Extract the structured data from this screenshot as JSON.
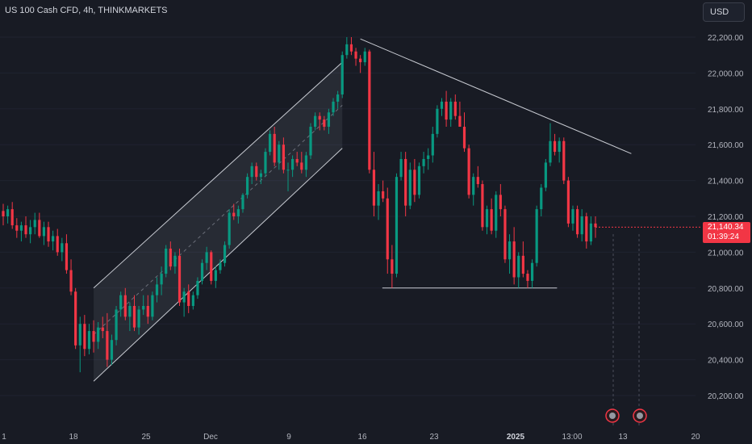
{
  "header": {
    "title": "US 100 Cash CFD, 4h, THINKMARKETS",
    "currency": "USD"
  },
  "last_price": {
    "value": "21,140.34",
    "countdown": "01:39:24"
  },
  "colors": {
    "background": "#181b24",
    "up": "#089981",
    "down": "#f23645",
    "line": "#c9ccd3"
  },
  "chart_data": {
    "type": "candlestick",
    "title": "US 100 Cash CFD, 4h, THINKMARKETS",
    "timeframe": "4h",
    "ylim": [
      20100,
      22280
    ],
    "y_ticks": [
      22200,
      22000,
      21800,
      21600,
      21400,
      21200,
      21000,
      20800,
      20600,
      20400,
      20200
    ],
    "y_tick_labels": [
      "22,200.00",
      "22,000.00",
      "21,800.00",
      "21,600.00",
      "21,400.00",
      "21,200.00",
      "21,000.00",
      "20,800.00",
      "20,600.00",
      "20,400.00",
      "20,200.00"
    ],
    "x_tick_labels": [
      "1",
      "18",
      "25",
      "Dec",
      "9",
      "16",
      "23",
      "2025",
      "13:00",
      "13",
      "20"
    ],
    "x_tick_bold": [
      false,
      false,
      false,
      false,
      false,
      false,
      false,
      true,
      false,
      false,
      false
    ],
    "candles": [
      [
        21230,
        21270,
        21150,
        21200
      ],
      [
        21200,
        21260,
        21160,
        21240
      ],
      [
        21240,
        21280,
        21130,
        21150
      ],
      [
        21150,
        21190,
        21080,
        21120
      ],
      [
        21120,
        21170,
        21060,
        21150
      ],
      [
        21150,
        21200,
        21080,
        21100
      ],
      [
        21100,
        21180,
        21050,
        21140
      ],
      [
        21140,
        21220,
        21100,
        21180
      ],
      [
        21180,
        21220,
        21080,
        21090
      ],
      [
        21090,
        21170,
        21040,
        21140
      ],
      [
        21140,
        21170,
        21030,
        21060
      ],
      [
        21060,
        21120,
        21010,
        21090
      ],
      [
        21090,
        21130,
        20980,
        21000
      ],
      [
        21000,
        21080,
        20950,
        21050
      ],
      [
        21050,
        21100,
        20880,
        20900
      ],
      [
        20900,
        20960,
        20760,
        20780
      ],
      [
        20780,
        20800,
        20460,
        20480
      ],
      [
        20480,
        20640,
        20330,
        20600
      ],
      [
        20600,
        20650,
        20420,
        20460
      ],
      [
        20460,
        20600,
        20430,
        20560
      ],
      [
        20560,
        20620,
        20440,
        20500
      ],
      [
        20500,
        20610,
        20460,
        20580
      ],
      [
        20580,
        20640,
        20520,
        20560
      ],
      [
        20560,
        20660,
        20360,
        20400
      ],
      [
        20400,
        20540,
        20370,
        20510
      ],
      [
        20510,
        20700,
        20480,
        20680
      ],
      [
        20680,
        20780,
        20640,
        20760
      ],
      [
        20760,
        20800,
        20620,
        20640
      ],
      [
        20640,
        20720,
        20560,
        20700
      ],
      [
        20700,
        20760,
        20560,
        20580
      ],
      [
        20580,
        20700,
        20540,
        20680
      ],
      [
        20680,
        20760,
        20650,
        20700
      ],
      [
        20700,
        20760,
        20600,
        20640
      ],
      [
        20640,
        20780,
        20620,
        20760
      ],
      [
        20760,
        20860,
        20720,
        20820
      ],
      [
        20820,
        20920,
        20760,
        20880
      ],
      [
        20880,
        21040,
        20860,
        21020
      ],
      [
        21020,
        21060,
        20900,
        20920
      ],
      [
        20920,
        21000,
        20880,
        20980
      ],
      [
        20980,
        21020,
        20700,
        20720
      ],
      [
        20720,
        20800,
        20640,
        20780
      ],
      [
        20780,
        20820,
        20660,
        20700
      ],
      [
        20700,
        20780,
        20680,
        20760
      ],
      [
        20760,
        20860,
        20740,
        20840
      ],
      [
        20840,
        20960,
        20820,
        20940
      ],
      [
        20940,
        21030,
        20900,
        21000
      ],
      [
        21000,
        21010,
        20820,
        20840
      ],
      [
        20840,
        20920,
        20800,
        20900
      ],
      [
        20900,
        20960,
        20880,
        20940
      ],
      [
        20940,
        21060,
        20920,
        21040
      ],
      [
        21040,
        21240,
        21020,
        21220
      ],
      [
        21220,
        21270,
        21180,
        21200
      ],
      [
        21200,
        21260,
        21160,
        21240
      ],
      [
        21240,
        21330,
        21220,
        21320
      ],
      [
        21320,
        21440,
        21300,
        21420
      ],
      [
        21420,
        21500,
        21380,
        21480
      ],
      [
        21480,
        21500,
        21400,
        21420
      ],
      [
        21420,
        21460,
        21380,
        21440
      ],
      [
        21440,
        21580,
        21420,
        21560
      ],
      [
        21560,
        21680,
        21540,
        21660
      ],
      [
        21660,
        21700,
        21480,
        21500
      ],
      [
        21500,
        21620,
        21460,
        21600
      ],
      [
        21600,
        21640,
        21440,
        21460
      ],
      [
        21460,
        21500,
        21340,
        21460
      ],
      [
        21460,
        21540,
        21420,
        21520
      ],
      [
        21520,
        21560,
        21480,
        21500
      ],
      [
        21500,
        21560,
        21440,
        21460
      ],
      [
        21460,
        21560,
        21420,
        21540
      ],
      [
        21540,
        21720,
        21520,
        21700
      ],
      [
        21700,
        21780,
        21680,
        21760
      ],
      [
        21760,
        21780,
        21680,
        21740
      ],
      [
        21740,
        21760,
        21680,
        21700
      ],
      [
        21700,
        21800,
        21660,
        21780
      ],
      [
        21780,
        21860,
        21760,
        21840
      ],
      [
        21840,
        21900,
        21800,
        21880
      ],
      [
        21880,
        22120,
        21860,
        22100
      ],
      [
        22100,
        22200,
        22080,
        22160
      ],
      [
        22160,
        22200,
        22100,
        22120
      ],
      [
        22120,
        22140,
        22040,
        22080
      ],
      [
        22080,
        22100,
        22000,
        22060
      ],
      [
        22060,
        22140,
        22040,
        22120
      ],
      [
        22120,
        22130,
        21440,
        21460
      ],
      [
        21460,
        21560,
        21200,
        21260
      ],
      [
        21260,
        21380,
        21180,
        21340
      ],
      [
        21340,
        21400,
        21280,
        21300
      ],
      [
        21300,
        21360,
        20880,
        20960
      ],
      [
        20960,
        21040,
        20800,
        20880
      ],
      [
        20880,
        21440,
        20860,
        21420
      ],
      [
        21420,
        21560,
        21400,
        21520
      ],
      [
        21520,
        21560,
        21200,
        21260
      ],
      [
        21260,
        21500,
        21240,
        21460
      ],
      [
        21460,
        21520,
        21280,
        21320
      ],
      [
        21320,
        21500,
        21300,
        21480
      ],
      [
        21480,
        21560,
        21440,
        21520
      ],
      [
        21520,
        21580,
        21460,
        21540
      ],
      [
        21540,
        21700,
        21500,
        21660
      ],
      [
        21660,
        21820,
        21640,
        21800
      ],
      [
        21800,
        21860,
        21760,
        21840
      ],
      [
        21840,
        21900,
        21700,
        21740
      ],
      [
        21740,
        21860,
        21700,
        21840
      ],
      [
        21840,
        21880,
        21740,
        21760
      ],
      [
        21760,
        21840,
        21700,
        21700
      ],
      [
        21700,
        21780,
        21560,
        21580
      ],
      [
        21580,
        21600,
        21300,
        21320
      ],
      [
        21320,
        21440,
        21260,
        21420
      ],
      [
        21420,
        21480,
        21360,
        21380
      ],
      [
        21380,
        21400,
        21120,
        21140
      ],
      [
        21140,
        21260,
        21100,
        21240
      ],
      [
        21240,
        21300,
        21100,
        21120
      ],
      [
        21120,
        21340,
        21080,
        21320
      ],
      [
        21320,
        21380,
        21200,
        21240
      ],
      [
        21240,
        21260,
        20940,
        20960
      ],
      [
        20960,
        21100,
        20880,
        21060
      ],
      [
        21060,
        21140,
        20820,
        20860
      ],
      [
        20860,
        21000,
        20800,
        20980
      ],
      [
        20980,
        21060,
        20860,
        20880
      ],
      [
        20880,
        20900,
        20800,
        20840
      ],
      [
        20840,
        20960,
        20800,
        20940
      ],
      [
        20940,
        21260,
        20920,
        21240
      ],
      [
        21240,
        21380,
        21200,
        21360
      ],
      [
        21360,
        21520,
        21340,
        21500
      ],
      [
        21500,
        21720,
        21480,
        21620
      ],
      [
        21620,
        21660,
        21540,
        21560
      ],
      [
        21560,
        21640,
        21500,
        21620
      ],
      [
        21620,
        21640,
        21380,
        21400
      ],
      [
        21400,
        21420,
        21140,
        21160
      ],
      [
        21160,
        21260,
        21120,
        21240
      ],
      [
        21240,
        21260,
        21080,
        21100
      ],
      [
        21100,
        21240,
        21060,
        21200
      ],
      [
        21200,
        21220,
        21020,
        21060
      ],
      [
        21060,
        21200,
        21040,
        21160
      ],
      [
        21160,
        21200,
        21080,
        21140
      ]
    ],
    "annotations": {
      "channel_upper": [
        [
          20800,
          "Nov 20"
        ],
        [
          22060,
          "Dec 14"
        ]
      ],
      "channel_lower": [
        [
          20280,
          "Nov 20"
        ],
        [
          21580,
          "Dec 14"
        ]
      ],
      "resistance_trendline": [
        [
          22190,
          "Dec 17"
        ],
        [
          21550,
          "Jan 14"
        ]
      ],
      "support_line": [
        [
          20800,
          "Dec 19"
        ],
        [
          20800,
          "Jan 10"
        ]
      ]
    }
  }
}
